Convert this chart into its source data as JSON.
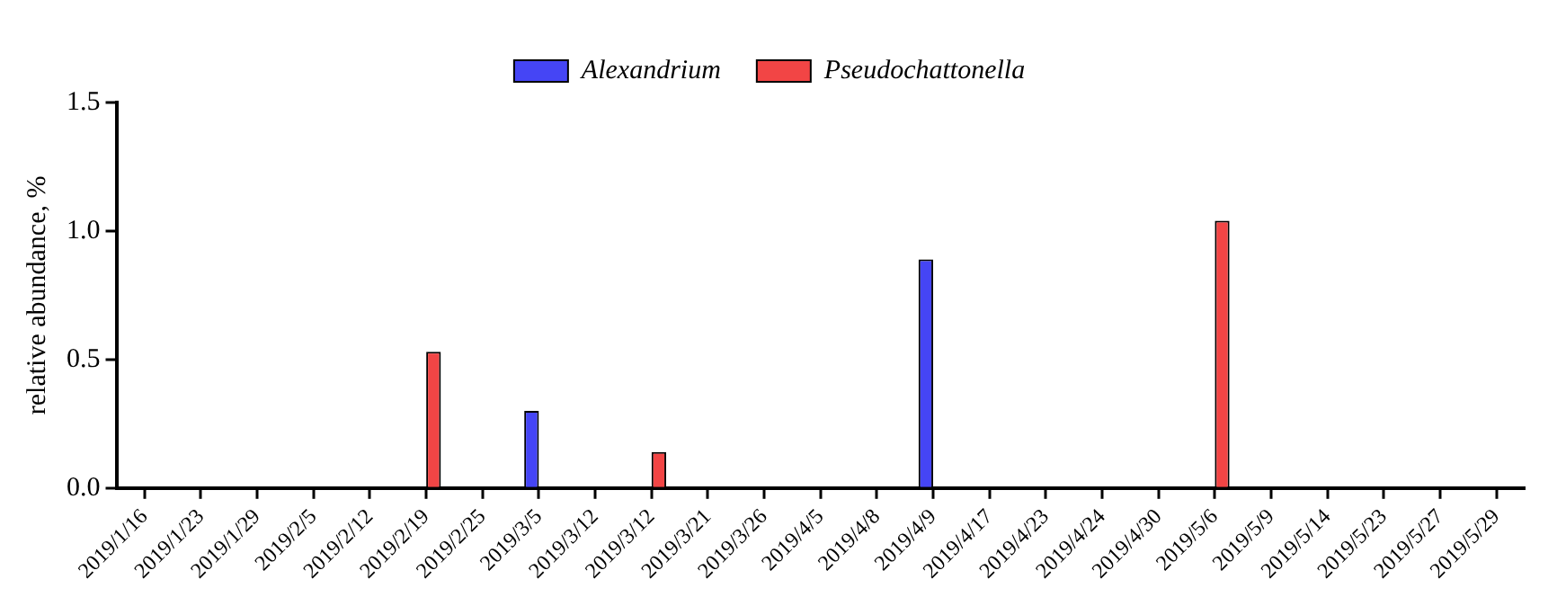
{
  "chart_data": {
    "type": "bar",
    "ylabel": "relative abundance, %",
    "categories": [
      "2019/1/16",
      "2019/1/23",
      "2019/1/29",
      "2019/2/5",
      "2019/2/12",
      "2019/2/19",
      "2019/2/25",
      "2019/3/5",
      "2019/3/12",
      "2019/3/12",
      "2019/3/21",
      "2019/3/26",
      "2019/4/5",
      "2019/4/8",
      "2019/4/9",
      "2019/4/17",
      "2019/4/23",
      "2019/4/24",
      "2019/4/30",
      "2019/5/6",
      "2019/5/9",
      "2019/5/14",
      "2019/5/23",
      "2019/5/27",
      "2019/5/29"
    ],
    "series": [
      {
        "name": "Alexandrium",
        "color": "#4545f5",
        "values": [
          0,
          0,
          0,
          0,
          0,
          0,
          0,
          0.3,
          0,
          0,
          0,
          0,
          0,
          0,
          0.89,
          0,
          0,
          0,
          0,
          0,
          0,
          0,
          0,
          0,
          0
        ]
      },
      {
        "name": "Pseudochattonella",
        "color": "#f24545",
        "values": [
          0,
          0,
          0,
          0,
          0,
          0.53,
          0,
          0,
          0,
          0.14,
          0,
          0,
          0,
          0,
          0,
          0,
          0,
          0,
          0,
          1.04,
          0,
          0,
          0,
          0,
          0
        ]
      }
    ],
    "ylim": [
      0,
      1.5
    ],
    "yticks": [
      {
        "value": 0,
        "label": "0.0"
      },
      {
        "value": 0.5,
        "label": "0.5"
      },
      {
        "value": 1,
        "label": "1.0"
      },
      {
        "value": 1.5,
        "label": "1.5"
      }
    ],
    "grid": false,
    "legend": "top"
  }
}
